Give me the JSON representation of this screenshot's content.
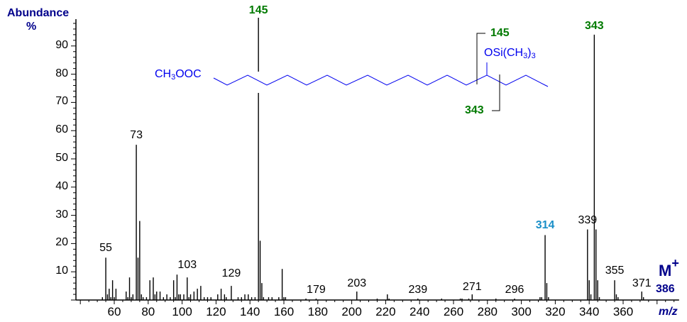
{
  "chart_data": {
    "type": "bar",
    "title": "",
    "xlabel": "m/z",
    "ylabel": "Abundance %",
    "xlim": [
      37,
      393
    ],
    "ylim": [
      0,
      100
    ],
    "x_ticks": [
      60,
      80,
      100,
      120,
      140,
      160,
      180,
      200,
      220,
      240,
      260,
      280,
      300,
      320,
      340,
      360
    ],
    "y_ticks": [
      10,
      20,
      30,
      40,
      50,
      60,
      70,
      80,
      90
    ],
    "grid": false,
    "legend": null,
    "peaks": [
      {
        "mz": 53,
        "abundance": 1
      },
      {
        "mz": 55,
        "abundance": 15
      },
      {
        "mz": 56,
        "abundance": 2
      },
      {
        "mz": 57,
        "abundance": 4
      },
      {
        "mz": 58,
        "abundance": 1
      },
      {
        "mz": 59,
        "abundance": 7
      },
      {
        "mz": 60,
        "abundance": 1
      },
      {
        "mz": 61,
        "abundance": 4
      },
      {
        "mz": 67,
        "abundance": 3
      },
      {
        "mz": 68,
        "abundance": 1
      },
      {
        "mz": 69,
        "abundance": 8
      },
      {
        "mz": 70,
        "abundance": 1
      },
      {
        "mz": 71,
        "abundance": 2
      },
      {
        "mz": 73,
        "abundance": 55
      },
      {
        "mz": 74,
        "abundance": 15
      },
      {
        "mz": 75,
        "abundance": 28
      },
      {
        "mz": 76,
        "abundance": 2
      },
      {
        "mz": 77,
        "abundance": 1
      },
      {
        "mz": 79,
        "abundance": 1
      },
      {
        "mz": 81,
        "abundance": 7
      },
      {
        "mz": 83,
        "abundance": 8
      },
      {
        "mz": 84,
        "abundance": 2
      },
      {
        "mz": 85,
        "abundance": 3
      },
      {
        "mz": 87,
        "abundance": 3
      },
      {
        "mz": 89,
        "abundance": 1
      },
      {
        "mz": 91,
        "abundance": 2
      },
      {
        "mz": 93,
        "abundance": 1
      },
      {
        "mz": 95,
        "abundance": 7
      },
      {
        "mz": 96,
        "abundance": 1
      },
      {
        "mz": 97,
        "abundance": 9
      },
      {
        "mz": 98,
        "abundance": 2
      },
      {
        "mz": 99,
        "abundance": 2
      },
      {
        "mz": 101,
        "abundance": 2
      },
      {
        "mz": 103,
        "abundance": 8
      },
      {
        "mz": 104,
        "abundance": 1
      },
      {
        "mz": 105,
        "abundance": 2
      },
      {
        "mz": 107,
        "abundance": 3
      },
      {
        "mz": 109,
        "abundance": 4
      },
      {
        "mz": 111,
        "abundance": 5
      },
      {
        "mz": 113,
        "abundance": 1
      },
      {
        "mz": 115,
        "abundance": 1
      },
      {
        "mz": 117,
        "abundance": 1
      },
      {
        "mz": 121,
        "abundance": 2
      },
      {
        "mz": 123,
        "abundance": 4
      },
      {
        "mz": 125,
        "abundance": 2
      },
      {
        "mz": 126,
        "abundance": 1
      },
      {
        "mz": 129,
        "abundance": 5
      },
      {
        "mz": 133,
        "abundance": 1
      },
      {
        "mz": 135,
        "abundance": 1
      },
      {
        "mz": 137,
        "abundance": 2
      },
      {
        "mz": 139,
        "abundance": 2
      },
      {
        "mz": 141,
        "abundance": 1
      },
      {
        "mz": 143,
        "abundance": 1
      },
      {
        "mz": 145,
        "abundance": 100
      },
      {
        "mz": 146,
        "abundance": 21
      },
      {
        "mz": 147,
        "abundance": 6
      },
      {
        "mz": 148,
        "abundance": 1
      },
      {
        "mz": 151,
        "abundance": 1
      },
      {
        "mz": 153,
        "abundance": 1
      },
      {
        "mz": 157,
        "abundance": 1
      },
      {
        "mz": 159,
        "abundance": 11
      },
      {
        "mz": 160,
        "abundance": 1
      },
      {
        "mz": 161,
        "abundance": 1
      },
      {
        "mz": 173,
        "abundance": 0.5
      },
      {
        "mz": 179,
        "abundance": 0.5
      },
      {
        "mz": 203,
        "abundance": 3
      },
      {
        "mz": 215,
        "abundance": 0.5
      },
      {
        "mz": 221,
        "abundance": 2
      },
      {
        "mz": 222,
        "abundance": 0.5
      },
      {
        "mz": 239,
        "abundance": 0.5
      },
      {
        "mz": 253,
        "abundance": 0.5
      },
      {
        "mz": 264,
        "abundance": 0.5
      },
      {
        "mz": 265,
        "abundance": 0.5
      },
      {
        "mz": 269,
        "abundance": 0.5
      },
      {
        "mz": 271,
        "abundance": 2
      },
      {
        "mz": 285,
        "abundance": 0.5
      },
      {
        "mz": 296,
        "abundance": 0.5
      },
      {
        "mz": 311,
        "abundance": 1
      },
      {
        "mz": 312,
        "abundance": 1
      },
      {
        "mz": 314,
        "abundance": 23
      },
      {
        "mz": 315,
        "abundance": 6
      },
      {
        "mz": 316,
        "abundance": 1
      },
      {
        "mz": 339,
        "abundance": 25
      },
      {
        "mz": 340,
        "abundance": 7
      },
      {
        "mz": 341,
        "abundance": 2
      },
      {
        "mz": 343,
        "abundance": 94
      },
      {
        "mz": 344,
        "abundance": 25
      },
      {
        "mz": 345,
        "abundance": 7
      },
      {
        "mz": 346,
        "abundance": 1
      },
      {
        "mz": 355,
        "abundance": 7
      },
      {
        "mz": 356,
        "abundance": 2
      },
      {
        "mz": 357,
        "abundance": 1
      },
      {
        "mz": 371,
        "abundance": 3
      },
      {
        "mz": 372,
        "abundance": 1
      }
    ],
    "peak_labels": [
      {
        "mz": 55,
        "text": "55",
        "y": 15,
        "color": "#000000"
      },
      {
        "mz": 73,
        "text": "73",
        "y": 55,
        "color": "#000000"
      },
      {
        "mz": 103,
        "text": "103",
        "y": 9,
        "color": "#000000"
      },
      {
        "mz": 129,
        "text": "129",
        "y": 6,
        "color": "#000000"
      },
      {
        "mz": 145,
        "text": "145",
        "y": 100,
        "color": "#007a00"
      },
      {
        "mz": 179,
        "text": "179",
        "y": 1,
        "color": "#000000"
      },
      {
        "mz": 203,
        "text": "203",
        "y": 3,
        "color": "#000000"
      },
      {
        "mz": 239,
        "text": "239",
        "y": 1,
        "color": "#000000"
      },
      {
        "mz": 271,
        "text": "271",
        "y": 2.5,
        "color": "#000000"
      },
      {
        "mz": 296,
        "text": "296",
        "y": 1,
        "color": "#000000"
      },
      {
        "mz": 314,
        "text": "314",
        "y": 23,
        "color": "#1a8fc8"
      },
      {
        "mz": 339,
        "text": "339",
        "y": 25,
        "color": "#000000"
      },
      {
        "mz": 343,
        "text": "343",
        "y": 94,
        "color": "#007a00"
      },
      {
        "mz": 355,
        "text": "355",
        "y": 7,
        "color": "#000000"
      },
      {
        "mz": 371,
        "text": "371",
        "y": 3,
        "color": "#000000"
      }
    ],
    "annotations": {
      "molecular_ion": {
        "label": "M",
        "charge": "+",
        "mz": "386"
      },
      "structure": {
        "left_group": "CH3OOC",
        "substituent": "OSi(CH3)3",
        "fragment_left": "145",
        "fragment_right": "343"
      }
    }
  },
  "axis": {
    "ylabel_line1": "Abundance",
    "ylabel_line2": "%",
    "xlabel": "m/z"
  },
  "structure": {
    "ester_ch": "CH",
    "ester_sub": "3",
    "ester_rest": "OOC",
    "tms_a": "OSi(CH",
    "tms_sub1": "3",
    "tms_b": ")",
    "tms_sub2": "3",
    "frag1": "145",
    "frag2": "343"
  },
  "mion": {
    "m": "M",
    "plus": "+",
    "value": "386"
  },
  "colors": {
    "axis": "#000000",
    "title": "#00008b",
    "structure": "#0000ee",
    "fragment": "#007a00",
    "highlight": "#1a8fc8"
  }
}
